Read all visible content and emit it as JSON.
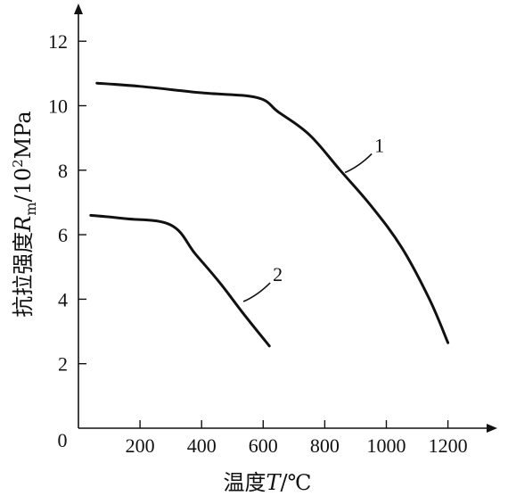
{
  "chart_data": {
    "type": "line",
    "xlabel": {
      "prefix": "温度",
      "symbol": "T",
      "unit": "/℃"
    },
    "ylabel": {
      "prefix": "抗拉强度",
      "symbol": "R",
      "subscript": "m",
      "unit_base": "/10",
      "unit_exp": "2",
      "unit_tail": "MPa"
    },
    "xlim": [
      0,
      1300
    ],
    "ylim": [
      0,
      13
    ],
    "origin_label": "0",
    "x_ticks": [
      200,
      400,
      600,
      800,
      1000,
      1200
    ],
    "x_tick_labels": [
      "200",
      "400",
      "600",
      "800",
      "1000",
      "1200"
    ],
    "y_ticks": [
      2,
      4,
      6,
      8,
      10,
      12
    ],
    "y_tick_labels": [
      "2",
      "4",
      "6",
      "8",
      "10",
      "12"
    ],
    "grid": false,
    "series": [
      {
        "name": "1",
        "x": [
          60,
          200,
          400,
          580,
          650,
          750,
          850,
          950,
          1050,
          1140,
          1200
        ],
        "y": [
          10.7,
          10.6,
          10.4,
          10.25,
          9.8,
          9.1,
          8.0,
          6.9,
          5.6,
          4.0,
          2.65
        ]
      },
      {
        "name": "2",
        "x": [
          40,
          150,
          300,
          380,
          460,
          540,
          620
        ],
        "y": [
          6.6,
          6.5,
          6.3,
          5.4,
          4.5,
          3.5,
          2.55
        ]
      }
    ],
    "annotations": [
      {
        "text": "1",
        "series": 0,
        "x": 860,
        "y": 7.9
      },
      {
        "text": "2",
        "series": 1,
        "x": 530,
        "y": 3.9
      }
    ]
  }
}
